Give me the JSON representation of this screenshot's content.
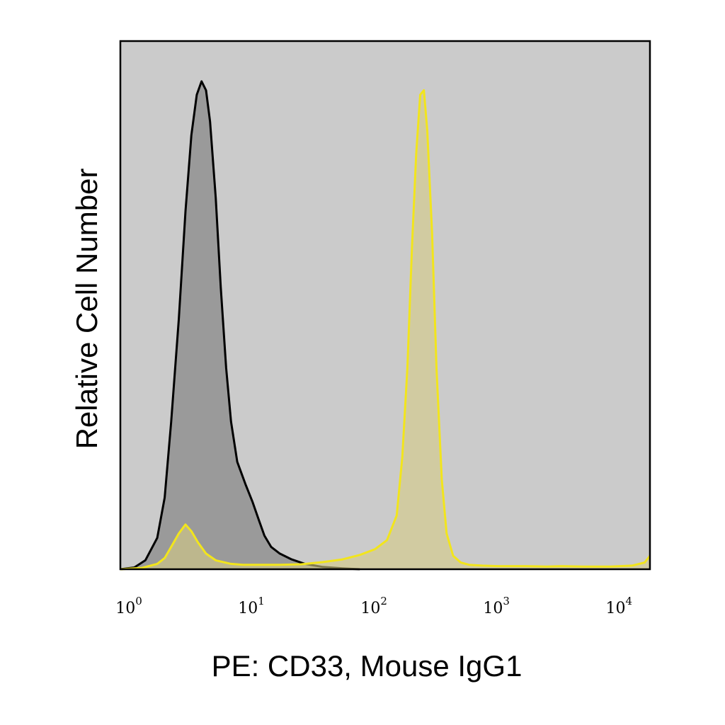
{
  "chart_data": {
    "type": "area",
    "xlabel": "PE: CD33, Mouse IgG1",
    "ylabel": "Relative Cell Number",
    "xscale": "log",
    "xlim": [
      1,
      21000
    ],
    "ylim": [
      0,
      1.18
    ],
    "grid": false,
    "legend": "none",
    "xticks": [
      {
        "base": "10",
        "exp": "0",
        "value": 1
      },
      {
        "base": "10",
        "exp": "1",
        "value": 10
      },
      {
        "base": "10",
        "exp": "2",
        "value": 100
      },
      {
        "base": "10",
        "exp": "3",
        "value": 1000
      },
      {
        "base": "10",
        "exp": "4",
        "value": 10000
      }
    ],
    "colors": {
      "plot_background": "#cbcbcb",
      "frame": "#000000",
      "isotype_fill": "#9a9a9a",
      "isotype_line": "#000000",
      "cd33_fill": "#d6cc86",
      "cd33_line": "#f2e51c"
    },
    "series": [
      {
        "x": [
          1.0,
          1.3,
          1.6,
          2.0,
          2.3,
          2.6,
          3.0,
          3.4,
          3.8,
          4.2,
          4.6,
          5.0,
          5.4,
          6.0,
          6.6,
          7.3,
          8.0,
          9.0,
          10.5,
          12,
          13.5,
          15,
          17,
          20,
          25,
          32,
          45,
          65,
          90
        ],
        "y": [
          0.0,
          0.004,
          0.02,
          0.07,
          0.16,
          0.33,
          0.56,
          0.8,
          0.97,
          1.06,
          1.09,
          1.07,
          1.0,
          0.83,
          0.63,
          0.45,
          0.33,
          0.24,
          0.19,
          0.15,
          0.11,
          0.075,
          0.05,
          0.035,
          0.022,
          0.012,
          0.005,
          0.002,
          0.0
        ]
      },
      {
        "x": [
          1.0,
          1.5,
          2.0,
          2.3,
          2.6,
          3.0,
          3.4,
          3.8,
          4.3,
          5.0,
          6.0,
          8.0,
          10,
          15,
          20,
          30,
          45,
          65,
          90,
          120,
          150,
          180,
          200,
          220,
          240,
          260,
          280,
          300,
          320,
          350,
          380,
          420,
          460,
          520,
          600,
          700,
          900,
          1200,
          2000,
          3000,
          4000,
          6000,
          10000,
          15000,
          19000,
          21000
        ],
        "y": [
          0.0,
          0.003,
          0.012,
          0.025,
          0.05,
          0.08,
          0.1,
          0.085,
          0.06,
          0.035,
          0.02,
          0.012,
          0.01,
          0.01,
          0.01,
          0.011,
          0.016,
          0.022,
          0.032,
          0.045,
          0.065,
          0.12,
          0.25,
          0.45,
          0.72,
          0.93,
          1.06,
          1.07,
          0.98,
          0.75,
          0.45,
          0.2,
          0.08,
          0.03,
          0.015,
          0.01,
          0.008,
          0.007,
          0.007,
          0.006,
          0.007,
          0.006,
          0.006,
          0.008,
          0.015,
          0.03
        ]
      }
    ]
  }
}
